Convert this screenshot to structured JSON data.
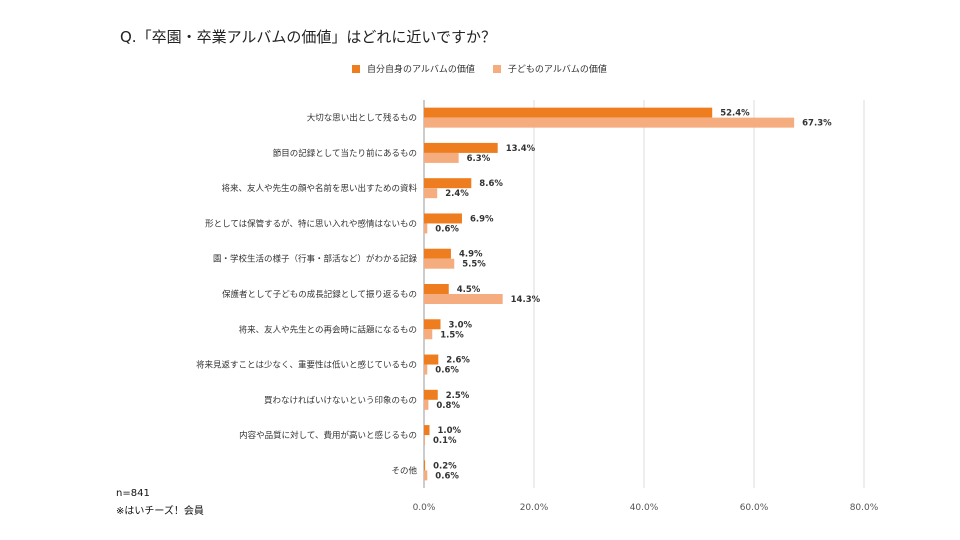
{
  "chart_data": {
    "type": "bar",
    "orientation": "horizontal",
    "title": "Q.「卒園・卒業アルバムの価値」はどれに近いですか？",
    "categories": [
      "大切な思い出として残るもの",
      "節目の記録として当たり前にあるもの",
      "将来、友人や先生の顔や名前を思い出すための資料",
      "形としては保管するが、特に思い入れや感情はないもの",
      "園・学校生活の様子（行事・部活など）がわかる記録",
      "保護者として子どもの成長記録として振り返るもの",
      "将来、友人や先生との再会時に話題になるもの",
      "将来見返すことは少なく、重要性は低いと感じているもの",
      "買わなければいけないという印象のもの",
      "内容や品質に対して、費用が高いと感じるもの",
      "その他"
    ],
    "series": [
      {
        "name": "自分自身のアルバムの価値",
        "color": "#ED7D1E",
        "values": [
          52.4,
          13.4,
          8.6,
          6.9,
          4.9,
          4.5,
          3.0,
          2.6,
          2.5,
          1.0,
          0.2
        ],
        "labels": [
          "52.4%",
          "13.4%",
          "8.6%",
          "6.9%",
          "4.9%",
          "4.5%",
          "3.0%",
          "2.6%",
          "2.5%",
          "1.0%",
          "0.2%"
        ]
      },
      {
        "name": "子どものアルバムの価値",
        "color": "#F5AD7F",
        "values": [
          67.3,
          6.3,
          2.4,
          0.6,
          5.5,
          14.3,
          1.5,
          0.6,
          0.8,
          0.1,
          0.6
        ],
        "labels": [
          "67.3%",
          "6.3%",
          "2.4%",
          "0.6%",
          "5.5%",
          "14.3%",
          "1.5%",
          "0.6%",
          "0.8%",
          "0.1%",
          "0.6%"
        ]
      }
    ],
    "xlim": [
      0,
      80
    ],
    "xticks": [
      0,
      20,
      40,
      60,
      80
    ],
    "xtick_labels": [
      "0.0%",
      "20.0%",
      "40.0%",
      "60.0%",
      "80.0%"
    ],
    "grid": true,
    "legend_position": "top"
  },
  "notes": {
    "sample": "n=841",
    "source": "※はいチーズ！会員"
  }
}
